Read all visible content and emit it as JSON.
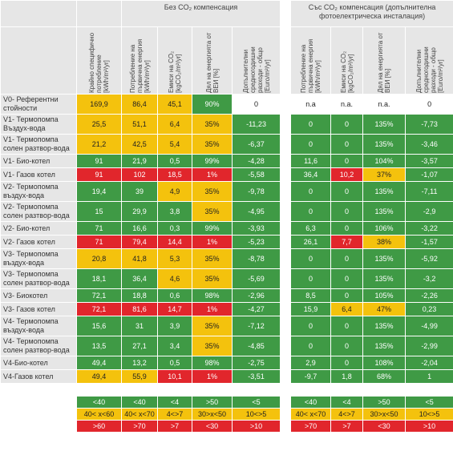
{
  "group_titles": [
    "Без CO₂ компенсация",
    "Със CO₂ компенсация (допълнителна фотоелектрическа инсталация)"
  ],
  "headers": [
    "Крайно специфично потребление [kWh/m²/yr]",
    "Потребление на първична енергия [kWh/m²/yr]",
    "Емиси на CO₂ [kgCO₂/m²/yr]",
    "Дял на енергията от ВЕИ [%]",
    "Допълнителни средногодишни разходи - общо [Euro/m²/yr]",
    "Потребление на първична енергия [kWh/m²/yr]",
    "Емиси на CO₂ [kgCO₂/m²/yr]",
    "Дял на енергията от ВЕИ [%]",
    "Допълнителни средногодишни разходи - общо [Euro/m²/yr]"
  ],
  "palette": {
    "G": "#3f9a45",
    "Y": "#f4c20d",
    "R": "#e1262c",
    "W": "#ffffff"
  },
  "rows": [
    {
      "label": "V0- Референтни стойности",
      "values": [
        "169,9",
        "86,4",
        "45,1",
        "90%",
        "0",
        "n.a",
        "n.a.",
        "n.a.",
        "0"
      ],
      "fills": [
        "Y",
        "Y",
        "Y",
        "G",
        "W",
        "W",
        "W",
        "W",
        "W"
      ]
    },
    {
      "label": "V1- Термопомпа Въздух-вода",
      "values": [
        "25,5",
        "51,1",
        "6,4",
        "35%",
        "-11,23",
        "0",
        "0",
        "135%",
        "-7,73"
      ],
      "fills": [
        "Y",
        "Y",
        "Y",
        "Y",
        "G",
        "G",
        "G",
        "G",
        "G"
      ]
    },
    {
      "label": "V1- Термопомпа солен разтвор-вода",
      "values": [
        "21,2",
        "42,5",
        "5,4",
        "35%",
        "-6,37",
        "0",
        "0",
        "135%",
        "-3,46"
      ],
      "fills": [
        "Y",
        "Y",
        "Y",
        "Y",
        "G",
        "G",
        "G",
        "G",
        "G"
      ]
    },
    {
      "label": "V1- Био-котел",
      "values": [
        "91",
        "21,9",
        "0,5",
        "99%",
        "-4,28",
        "11,6",
        "0",
        "104%",
        "-3,57"
      ],
      "fills": [
        "G",
        "G",
        "G",
        "G",
        "G",
        "G",
        "G",
        "G",
        "G"
      ]
    },
    {
      "label": "V1- Газов котел",
      "values": [
        "91",
        "102",
        "18,5",
        "1%",
        "-5,58",
        "36,4",
        "10,2",
        "37%",
        "-1,07"
      ],
      "fills": [
        "R",
        "R",
        "R",
        "R",
        "G",
        "G",
        "R",
        "Y",
        "G"
      ]
    },
    {
      "label": "V2- Термопомпа въздух-вода",
      "values": [
        "19,4",
        "39",
        "4,9",
        "35%",
        "-9,78",
        "0",
        "0",
        "135%",
        "-7,11"
      ],
      "fills": [
        "G",
        "G",
        "Y",
        "Y",
        "G",
        "G",
        "G",
        "G",
        "G"
      ]
    },
    {
      "label": "V2- Термопомпа солен разтвор-вода",
      "values": [
        "15",
        "29,9",
        "3,8",
        "35%",
        "-4,95",
        "0",
        "0",
        "135%",
        "-2,9"
      ],
      "fills": [
        "G",
        "G",
        "G",
        "Y",
        "G",
        "G",
        "G",
        "G",
        "G"
      ]
    },
    {
      "label": "V2- Био-котел",
      "values": [
        "71",
        "16,6",
        "0,3",
        "99%",
        "-3,93",
        "6,3",
        "0",
        "106%",
        "-3,22"
      ],
      "fills": [
        "G",
        "G",
        "G",
        "G",
        "G",
        "G",
        "G",
        "G",
        "G"
      ]
    },
    {
      "label": "V2- Газов котел",
      "values": [
        "71",
        "79,4",
        "14,4",
        "1%",
        "-5,23",
        "26,1",
        "7,7",
        "38%",
        "-1,57"
      ],
      "fills": [
        "R",
        "R",
        "R",
        "R",
        "G",
        "G",
        "R",
        "Y",
        "G"
      ]
    },
    {
      "label": "V3- Термопомпа въздух-вода",
      "values": [
        "20,8",
        "41,8",
        "5,3",
        "35%",
        "-8,78",
        "0",
        "0",
        "135%",
        "-5,92"
      ],
      "fills": [
        "Y",
        "Y",
        "Y",
        "Y",
        "G",
        "G",
        "G",
        "G",
        "G"
      ]
    },
    {
      "label": "V3- Термопомпа солен разтвор-вода",
      "values": [
        "18,1",
        "36,4",
        "4,6",
        "35%",
        "-5,69",
        "0",
        "0",
        "135%",
        "-3,2"
      ],
      "fills": [
        "G",
        "G",
        "Y",
        "Y",
        "G",
        "G",
        "G",
        "G",
        "G"
      ]
    },
    {
      "label": "V3- Биокотел",
      "values": [
        "72,1",
        "18,8",
        "0,6",
        "98%",
        "-2,96",
        "8,5",
        "0",
        "105%",
        "-2,26"
      ],
      "fills": [
        "G",
        "G",
        "G",
        "G",
        "G",
        "G",
        "G",
        "G",
        "G"
      ]
    },
    {
      "label": "V3- Газов котел",
      "values": [
        "72,1",
        "81,6",
        "14,7",
        "1%",
        "-4,27",
        "15,9",
        "6,4",
        "47%",
        "0,23"
      ],
      "fills": [
        "R",
        "R",
        "R",
        "R",
        "G",
        "G",
        "Y",
        "Y",
        "G"
      ]
    },
    {
      "label": "V4- Термопомпа въздух-вода",
      "values": [
        "15,6",
        "31",
        "3,9",
        "35%",
        "-7,12",
        "0",
        "0",
        "135%",
        "-4,99"
      ],
      "fills": [
        "G",
        "G",
        "G",
        "Y",
        "G",
        "G",
        "G",
        "G",
        "G"
      ]
    },
    {
      "label": "V4- Термопомпа солен разтвор-вода",
      "values": [
        "13,5",
        "27,1",
        "3,4",
        "35%",
        "-4,85",
        "0",
        "0",
        "135%",
        "-2,99"
      ],
      "fills": [
        "G",
        "G",
        "G",
        "Y",
        "G",
        "G",
        "G",
        "G",
        "G"
      ]
    },
    {
      "label": "V4-Био-котел",
      "values": [
        "49,4",
        "13,2",
        "0,5",
        "98%",
        "-2,75",
        "2,9",
        "0",
        "108%",
        "-2,04"
      ],
      "fills": [
        "G",
        "G",
        "G",
        "G",
        "G",
        "G",
        "G",
        "G",
        "G"
      ]
    },
    {
      "label": "V4-Газов котел",
      "values": [
        "49,4",
        "55,9",
        "10,1",
        "1%",
        "-3,51",
        "-9,7",
        "1,8",
        "68%",
        "1"
      ],
      "fills": [
        "Y",
        "Y",
        "R",
        "R",
        "G",
        "G",
        "G",
        "G",
        "G"
      ]
    }
  ],
  "legend": [
    {
      "fill": "G",
      "values": [
        "<40",
        "<40",
        "<4",
        ">50",
        "<5",
        "<40",
        "<4",
        ">50",
        "<5"
      ]
    },
    {
      "fill": "Y",
      "values": [
        "40< x<60",
        "40< x<70",
        "4<>7",
        "30>x<50",
        "10<>5",
        "40< x<70",
        "4<>7",
        "30>x<50",
        "10<>5"
      ]
    },
    {
      "fill": "R",
      "values": [
        ">60",
        ">70",
        ">7",
        "<30",
        ">10",
        ">70",
        ">7",
        "<30",
        ">10"
      ]
    }
  ]
}
